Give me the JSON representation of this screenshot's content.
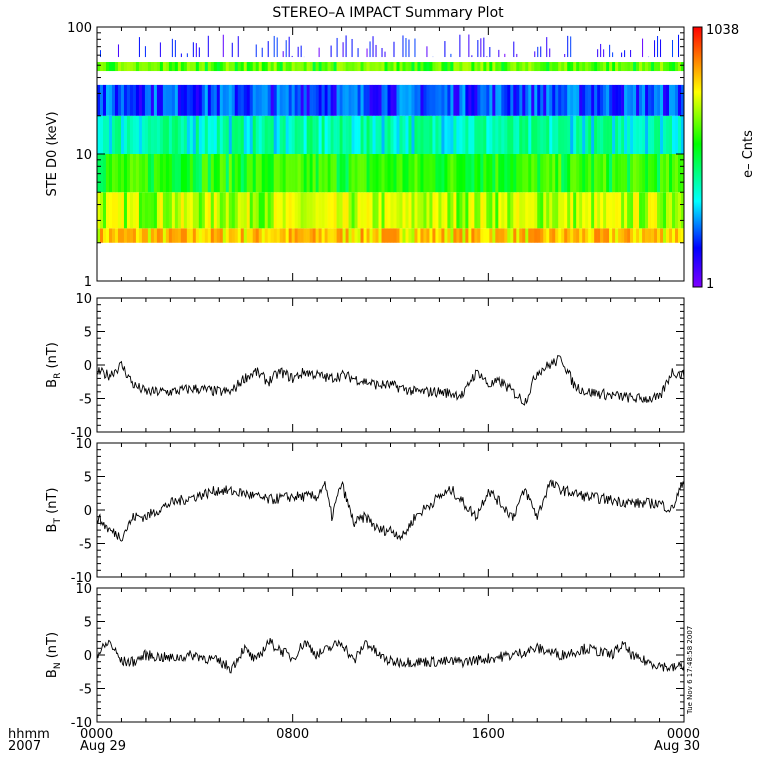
{
  "title": "STEREO–A IMPACT Summary Plot",
  "timestamp": "Tue Nov  6 17:48:58 2007",
  "footer": {
    "left_top": "hhmm",
    "left_bottom": "2007"
  },
  "x_axis": {
    "range_hours": [
      0,
      24
    ],
    "ticks": [
      {
        "hour": 0,
        "label": "0000",
        "sub": "Aug 29"
      },
      {
        "hour": 8,
        "label": "0800",
        "sub": ""
      },
      {
        "hour": 16,
        "label": "1600",
        "sub": ""
      },
      {
        "hour": 24,
        "label": "0000",
        "sub": "Aug 30"
      }
    ]
  },
  "colorbar": {
    "max_label": "1038",
    "min_label": "1",
    "label": "e– Cnts"
  },
  "chart_data": [
    {
      "type": "heatmap",
      "ylabel": "STE D0 (keV)",
      "yscale": "log",
      "ylim": [
        1,
        100
      ],
      "yticks": [
        "1",
        "10",
        "100"
      ],
      "zlim": [
        1,
        1038
      ],
      "energy_coverage_keV": [
        2,
        58
      ],
      "bands": [
        {
          "energy_keV": [
            2,
            2.6
          ],
          "counts": 250
        },
        {
          "energy_keV": [
            2.6,
            5
          ],
          "counts": 120
        },
        {
          "energy_keV": [
            5,
            10
          ],
          "counts": 50
        },
        {
          "energy_keV": [
            10,
            20
          ],
          "counts": 15
        },
        {
          "energy_keV": [
            20,
            35
          ],
          "counts": 4
        },
        {
          "energy_keV": [
            45,
            53
          ],
          "counts": 70
        }
      ]
    },
    {
      "type": "line",
      "ylabel_main": "B",
      "ylabel_sub": "R",
      "ylabel_unit": " (nT)",
      "ylim": [
        -10,
        10
      ],
      "yticks": [
        "10",
        "5",
        "0",
        "-5",
        "-10"
      ],
      "x": [
        0,
        0.5,
        1,
        1.5,
        2,
        3,
        4,
        5,
        5.5,
        6,
        6.5,
        7,
        7.5,
        8,
        8.5,
        9,
        9.5,
        10,
        10.5,
        11,
        11.5,
        12,
        13,
        14,
        15,
        15.3,
        15.6,
        16,
        16.5,
        17,
        17.5,
        18,
        18.5,
        19,
        19.5,
        20,
        21,
        22,
        23,
        23.5,
        24
      ],
      "values": [
        -1,
        -1.5,
        0,
        -3,
        -4,
        -4,
        -3.5,
        -4,
        -4,
        -2,
        -1,
        -2.5,
        -1,
        -2,
        -1,
        -1.5,
        -2,
        -1.5,
        -2,
        -2.5,
        -3,
        -3,
        -4,
        -4,
        -4.5,
        -2,
        -1,
        -3,
        -2.5,
        -4,
        -5.5,
        -1,
        0,
        1,
        -3,
        -4,
        -4.5,
        -5,
        -5,
        -1,
        -1.5
      ]
    },
    {
      "type": "line",
      "ylabel_main": "B",
      "ylabel_sub": "T",
      "ylabel_unit": " (nT)",
      "ylim": [
        -10,
        10
      ],
      "yticks": [
        "10",
        "5",
        "0",
        "-5",
        "-10"
      ],
      "x": [
        0,
        0.5,
        1,
        1.5,
        2,
        3,
        4,
        5,
        6,
        7,
        8,
        9,
        9.3,
        9.6,
        10,
        10.5,
        11,
        11.5,
        12,
        12.5,
        13,
        14,
        14.5,
        15,
        15.5,
        16,
        16.5,
        17,
        17.5,
        18,
        18.5,
        19,
        20,
        21,
        22,
        23,
        23.5,
        24
      ],
      "values": [
        -1,
        -3,
        -4,
        -1,
        -1,
        1,
        2,
        3,
        2.5,
        1.5,
        2,
        2,
        4,
        -1,
        4,
        -2,
        -1,
        -3,
        -3,
        -4,
        -1,
        2,
        3,
        1,
        -1,
        3,
        1,
        -1,
        3,
        -1,
        4,
        3,
        2,
        1.5,
        1,
        1,
        0,
        4.5
      ]
    },
    {
      "type": "line",
      "ylabel_main": "B",
      "ylabel_sub": "N",
      "ylabel_unit": " (nT)",
      "ylim": [
        -10,
        10
      ],
      "yticks": [
        "10",
        "5",
        "0",
        "-5",
        "-10"
      ],
      "x": [
        0,
        0.5,
        1,
        1.5,
        2,
        3,
        4,
        5,
        5.5,
        6,
        6.5,
        7,
        8,
        8.5,
        9,
        9.5,
        10,
        10.5,
        11,
        11.5,
        12,
        13,
        14,
        15,
        16,
        17,
        18,
        19,
        20,
        21,
        21.5,
        22,
        23,
        23.5,
        24
      ],
      "values": [
        0,
        2,
        -1,
        -1,
        0,
        -0.5,
        0,
        -1,
        -2,
        1,
        -1,
        2,
        -0.5,
        2,
        0,
        1,
        2,
        -1,
        2,
        0,
        -1,
        -1,
        -1,
        -1,
        -0.5,
        0,
        1,
        0,
        1,
        0,
        1.5,
        -0.5,
        -1.5,
        -2,
        -1.5
      ]
    }
  ]
}
